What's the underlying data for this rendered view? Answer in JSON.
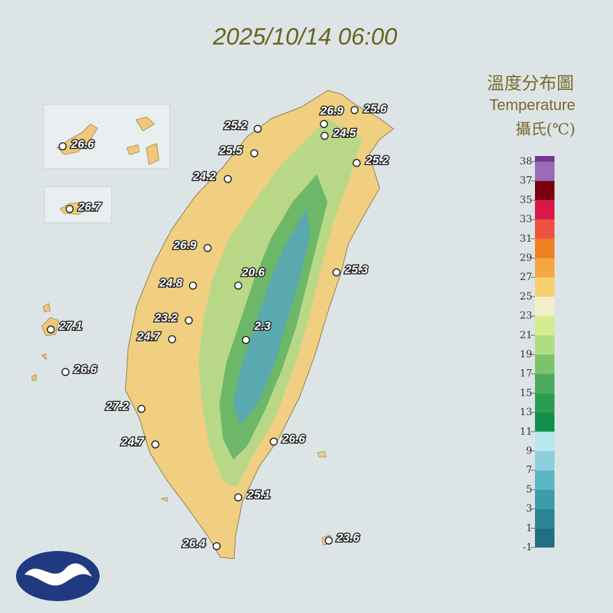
{
  "title": "2025/10/14 06:00",
  "legend": {
    "title": "溫度分布圖",
    "subtitle": "Temperature",
    "unit": "攝氏(℃)",
    "ticks": [
      38,
      37,
      35,
      33,
      31,
      29,
      27,
      25,
      23,
      21,
      19,
      17,
      15,
      13,
      11,
      9,
      7,
      5,
      3,
      1,
      -1
    ],
    "colors": [
      "#7b3294",
      "#9a6bb8",
      "#7a0010",
      "#d81848",
      "#f05040",
      "#f08020",
      "#f5a742",
      "#f8d070",
      "#f2f0c8",
      "#d6ec90",
      "#b0dc80",
      "#7cc46c",
      "#4cac5c",
      "#2c9c50",
      "#10904c",
      "#b8e8ee",
      "#8ccedc",
      "#5cb4c4",
      "#3c9cac",
      "#2c8494",
      "#207080"
    ]
  },
  "stations": [
    26.9,
    25.6,
    24.5,
    25.2,
    25.5,
    25.2,
    24.2,
    26.6,
    26.7,
    26.9,
    25.3,
    20.6,
    24.8,
    23.2,
    2.3,
    24.7,
    27.1,
    26.6,
    27.2,
    24.7,
    26.6,
    25.1,
    23.6,
    26.4
  ]
}
